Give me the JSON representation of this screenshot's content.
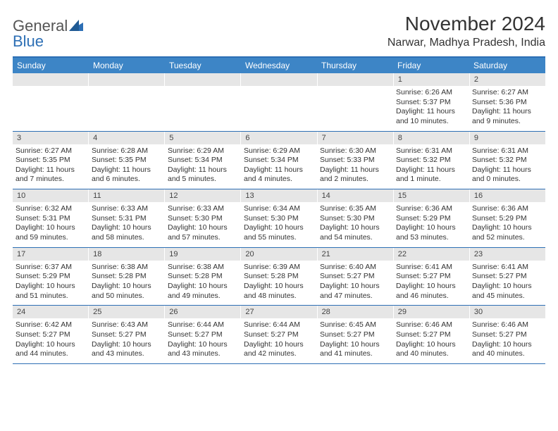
{
  "logo": {
    "text1": "General",
    "text2": "Blue"
  },
  "title": "November 2024",
  "location": "Narwar, Madhya Pradesh, India",
  "colors": {
    "header_bar": "#3d85c6",
    "rule": "#2d6fb5",
    "date_bg": "#e6e6e6",
    "text": "#333333",
    "bg": "#ffffff"
  },
  "days_of_week": [
    "Sunday",
    "Monday",
    "Tuesday",
    "Wednesday",
    "Thursday",
    "Friday",
    "Saturday"
  ],
  "weeks": [
    [
      {
        "date": "",
        "sunrise": "",
        "sunset": "",
        "daylight": ""
      },
      {
        "date": "",
        "sunrise": "",
        "sunset": "",
        "daylight": ""
      },
      {
        "date": "",
        "sunrise": "",
        "sunset": "",
        "daylight": ""
      },
      {
        "date": "",
        "sunrise": "",
        "sunset": "",
        "daylight": ""
      },
      {
        "date": "",
        "sunrise": "",
        "sunset": "",
        "daylight": ""
      },
      {
        "date": "1",
        "sunrise": "Sunrise: 6:26 AM",
        "sunset": "Sunset: 5:37 PM",
        "daylight": "Daylight: 11 hours and 10 minutes."
      },
      {
        "date": "2",
        "sunrise": "Sunrise: 6:27 AM",
        "sunset": "Sunset: 5:36 PM",
        "daylight": "Daylight: 11 hours and 9 minutes."
      }
    ],
    [
      {
        "date": "3",
        "sunrise": "Sunrise: 6:27 AM",
        "sunset": "Sunset: 5:35 PM",
        "daylight": "Daylight: 11 hours and 7 minutes."
      },
      {
        "date": "4",
        "sunrise": "Sunrise: 6:28 AM",
        "sunset": "Sunset: 5:35 PM",
        "daylight": "Daylight: 11 hours and 6 minutes."
      },
      {
        "date": "5",
        "sunrise": "Sunrise: 6:29 AM",
        "sunset": "Sunset: 5:34 PM",
        "daylight": "Daylight: 11 hours and 5 minutes."
      },
      {
        "date": "6",
        "sunrise": "Sunrise: 6:29 AM",
        "sunset": "Sunset: 5:34 PM",
        "daylight": "Daylight: 11 hours and 4 minutes."
      },
      {
        "date": "7",
        "sunrise": "Sunrise: 6:30 AM",
        "sunset": "Sunset: 5:33 PM",
        "daylight": "Daylight: 11 hours and 2 minutes."
      },
      {
        "date": "8",
        "sunrise": "Sunrise: 6:31 AM",
        "sunset": "Sunset: 5:32 PM",
        "daylight": "Daylight: 11 hours and 1 minute."
      },
      {
        "date": "9",
        "sunrise": "Sunrise: 6:31 AM",
        "sunset": "Sunset: 5:32 PM",
        "daylight": "Daylight: 11 hours and 0 minutes."
      }
    ],
    [
      {
        "date": "10",
        "sunrise": "Sunrise: 6:32 AM",
        "sunset": "Sunset: 5:31 PM",
        "daylight": "Daylight: 10 hours and 59 minutes."
      },
      {
        "date": "11",
        "sunrise": "Sunrise: 6:33 AM",
        "sunset": "Sunset: 5:31 PM",
        "daylight": "Daylight: 10 hours and 58 minutes."
      },
      {
        "date": "12",
        "sunrise": "Sunrise: 6:33 AM",
        "sunset": "Sunset: 5:30 PM",
        "daylight": "Daylight: 10 hours and 57 minutes."
      },
      {
        "date": "13",
        "sunrise": "Sunrise: 6:34 AM",
        "sunset": "Sunset: 5:30 PM",
        "daylight": "Daylight: 10 hours and 55 minutes."
      },
      {
        "date": "14",
        "sunrise": "Sunrise: 6:35 AM",
        "sunset": "Sunset: 5:30 PM",
        "daylight": "Daylight: 10 hours and 54 minutes."
      },
      {
        "date": "15",
        "sunrise": "Sunrise: 6:36 AM",
        "sunset": "Sunset: 5:29 PM",
        "daylight": "Daylight: 10 hours and 53 minutes."
      },
      {
        "date": "16",
        "sunrise": "Sunrise: 6:36 AM",
        "sunset": "Sunset: 5:29 PM",
        "daylight": "Daylight: 10 hours and 52 minutes."
      }
    ],
    [
      {
        "date": "17",
        "sunrise": "Sunrise: 6:37 AM",
        "sunset": "Sunset: 5:29 PM",
        "daylight": "Daylight: 10 hours and 51 minutes."
      },
      {
        "date": "18",
        "sunrise": "Sunrise: 6:38 AM",
        "sunset": "Sunset: 5:28 PM",
        "daylight": "Daylight: 10 hours and 50 minutes."
      },
      {
        "date": "19",
        "sunrise": "Sunrise: 6:38 AM",
        "sunset": "Sunset: 5:28 PM",
        "daylight": "Daylight: 10 hours and 49 minutes."
      },
      {
        "date": "20",
        "sunrise": "Sunrise: 6:39 AM",
        "sunset": "Sunset: 5:28 PM",
        "daylight": "Daylight: 10 hours and 48 minutes."
      },
      {
        "date": "21",
        "sunrise": "Sunrise: 6:40 AM",
        "sunset": "Sunset: 5:27 PM",
        "daylight": "Daylight: 10 hours and 47 minutes."
      },
      {
        "date": "22",
        "sunrise": "Sunrise: 6:41 AM",
        "sunset": "Sunset: 5:27 PM",
        "daylight": "Daylight: 10 hours and 46 minutes."
      },
      {
        "date": "23",
        "sunrise": "Sunrise: 6:41 AM",
        "sunset": "Sunset: 5:27 PM",
        "daylight": "Daylight: 10 hours and 45 minutes."
      }
    ],
    [
      {
        "date": "24",
        "sunrise": "Sunrise: 6:42 AM",
        "sunset": "Sunset: 5:27 PM",
        "daylight": "Daylight: 10 hours and 44 minutes."
      },
      {
        "date": "25",
        "sunrise": "Sunrise: 6:43 AM",
        "sunset": "Sunset: 5:27 PM",
        "daylight": "Daylight: 10 hours and 43 minutes."
      },
      {
        "date": "26",
        "sunrise": "Sunrise: 6:44 AM",
        "sunset": "Sunset: 5:27 PM",
        "daylight": "Daylight: 10 hours and 43 minutes."
      },
      {
        "date": "27",
        "sunrise": "Sunrise: 6:44 AM",
        "sunset": "Sunset: 5:27 PM",
        "daylight": "Daylight: 10 hours and 42 minutes."
      },
      {
        "date": "28",
        "sunrise": "Sunrise: 6:45 AM",
        "sunset": "Sunset: 5:27 PM",
        "daylight": "Daylight: 10 hours and 41 minutes."
      },
      {
        "date": "29",
        "sunrise": "Sunrise: 6:46 AM",
        "sunset": "Sunset: 5:27 PM",
        "daylight": "Daylight: 10 hours and 40 minutes."
      },
      {
        "date": "30",
        "sunrise": "Sunrise: 6:46 AM",
        "sunset": "Sunset: 5:27 PM",
        "daylight": "Daylight: 10 hours and 40 minutes."
      }
    ]
  ]
}
